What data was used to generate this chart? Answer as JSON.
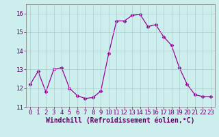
{
  "x": [
    0,
    1,
    2,
    3,
    4,
    5,
    6,
    7,
    8,
    9,
    10,
    11,
    12,
    13,
    14,
    15,
    16,
    17,
    18,
    19,
    20,
    21,
    22,
    23
  ],
  "y": [
    12.2,
    12.9,
    11.8,
    13.0,
    13.1,
    12.0,
    11.6,
    11.45,
    11.5,
    11.85,
    13.85,
    15.6,
    15.6,
    15.9,
    15.95,
    15.3,
    15.4,
    14.75,
    14.3,
    13.1,
    12.2,
    11.65,
    11.55,
    11.55
  ],
  "line_color": "#990099",
  "marker": "D",
  "marker_size": 2.5,
  "bg_color": "#cceeed",
  "grid_color": "#aacccc",
  "xlabel": "Windchill (Refroidissement éolien,°C)",
  "xlabel_fontsize": 7,
  "tick_fontsize": 6.5,
  "ylim": [
    11.0,
    16.5
  ],
  "xlim": [
    -0.5,
    23.5
  ],
  "yticks": [
    11,
    12,
    13,
    14,
    15,
    16
  ],
  "xticks": [
    0,
    1,
    2,
    3,
    4,
    5,
    6,
    7,
    8,
    9,
    10,
    11,
    12,
    13,
    14,
    15,
    16,
    17,
    18,
    19,
    20,
    21,
    22,
    23
  ]
}
